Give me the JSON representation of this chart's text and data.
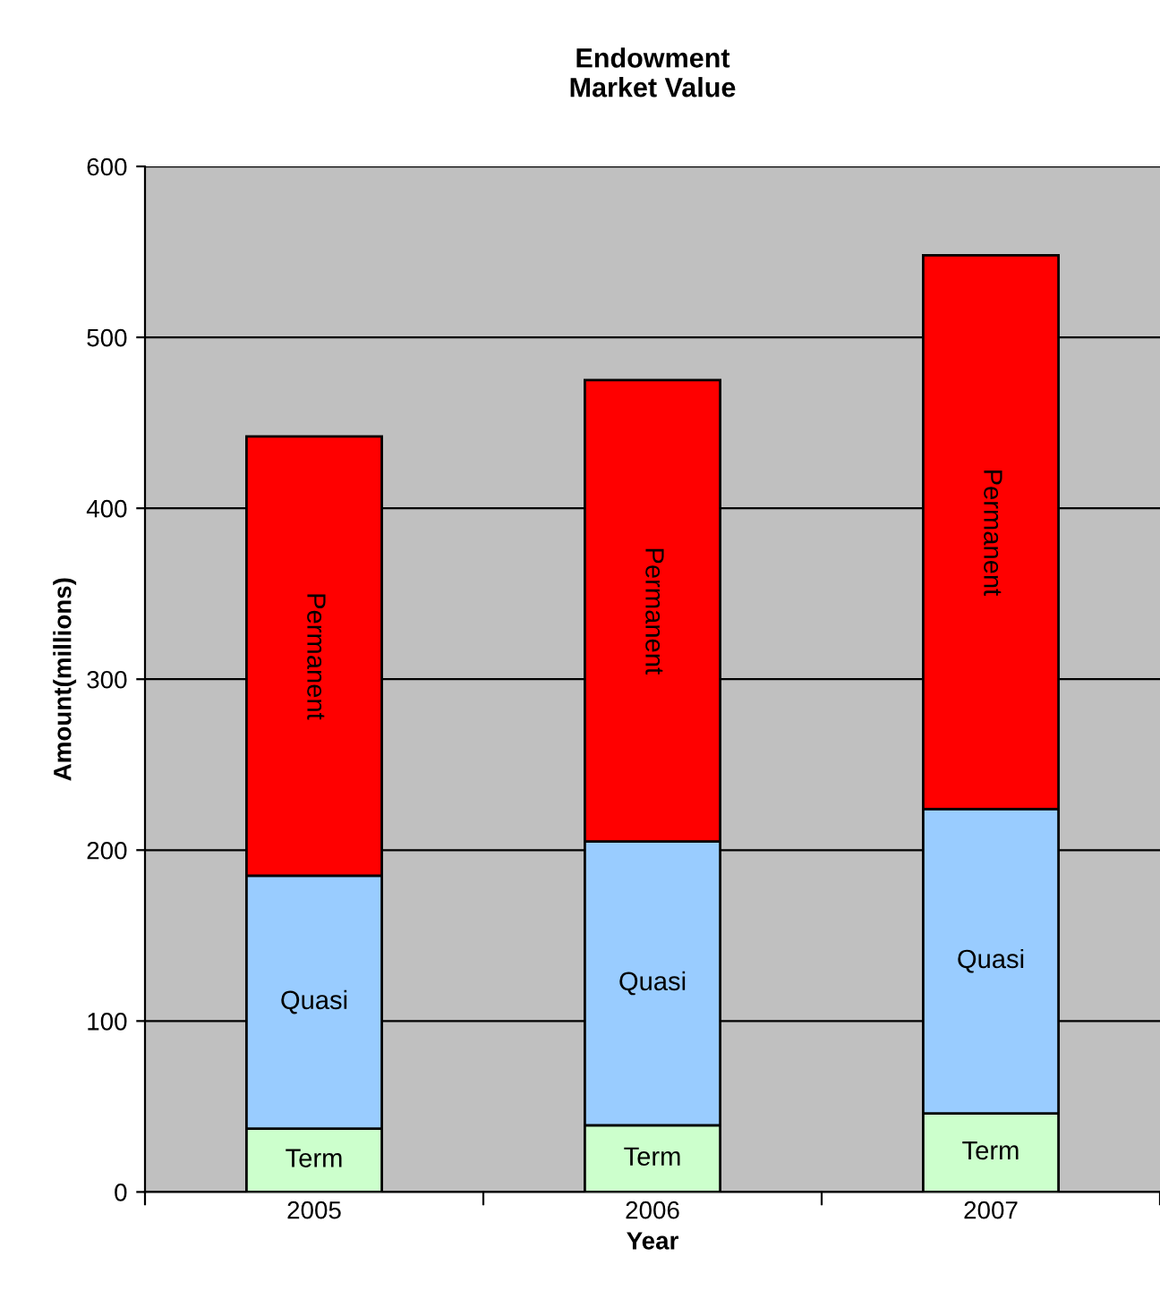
{
  "chart_data": {
    "type": "bar",
    "title": "Endowment\nMarket Value",
    "xlabel": "Year",
    "ylabel": "Amount(millions)",
    "categories": [
      "2005",
      "2006",
      "2007"
    ],
    "stacked": true,
    "series": [
      {
        "name": "Term",
        "color": "#ccffcc",
        "values": [
          37,
          39,
          46
        ]
      },
      {
        "name": "Quasi",
        "color": "#99ccff",
        "values": [
          148,
          166,
          178
        ]
      },
      {
        "name": "Permanent",
        "color": "#ff0000",
        "values": [
          257,
          270,
          324
        ]
      }
    ],
    "ylim": [
      0,
      600
    ],
    "yticks": [
      0,
      100,
      200,
      300,
      400,
      500,
      600
    ],
    "grid": "y",
    "legend": false
  }
}
